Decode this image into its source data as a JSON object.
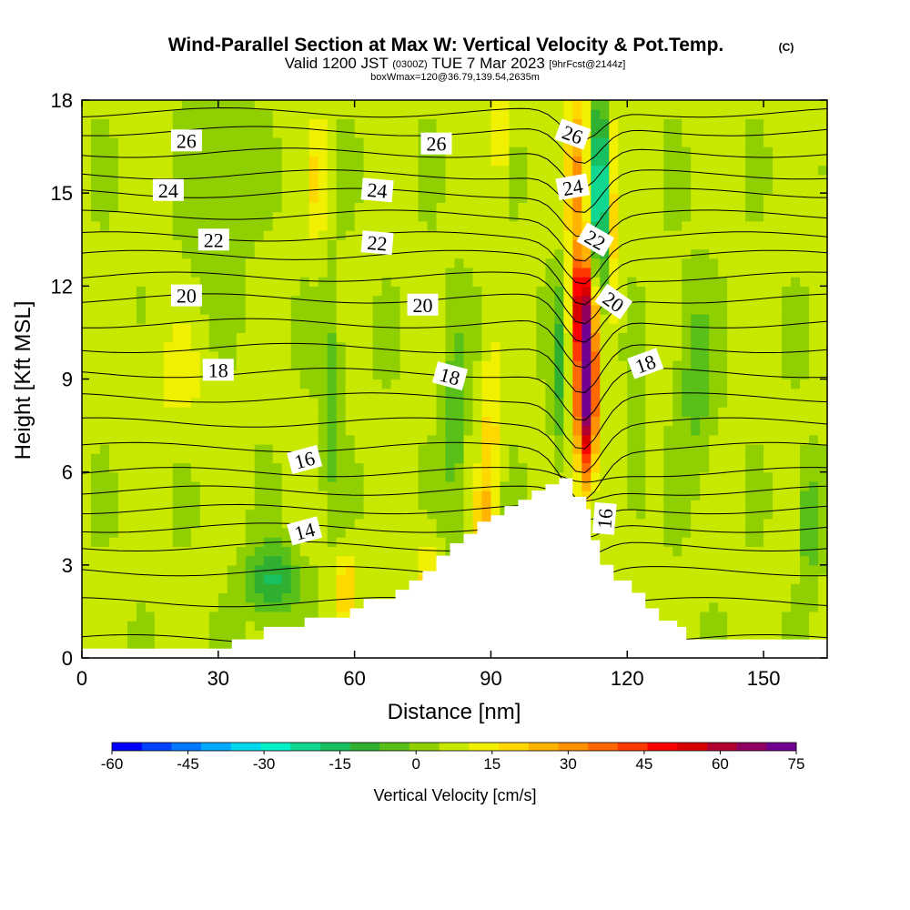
{
  "chart_data": {
    "type": "heatmap",
    "title": "Wind-Parallel Section at Max W: Vertical Velocity & Pot.Temp.",
    "title_mark": "(C)",
    "subtitle": {
      "valid": "Valid 1200 JST",
      "utc": "(0300Z)",
      "date": "TUE 7 Mar 2023",
      "forecast": "[9hrFcst@2144z]"
    },
    "subtitle2": "boxWmax=120@36.79,139.54,2635m",
    "xlabel": "Distance [nm]",
    "ylabel": "Height [Kft MSL]",
    "xlim": [
      0,
      164
    ],
    "ylim": [
      0,
      18
    ],
    "xticks": [
      0,
      30,
      60,
      90,
      120,
      150
    ],
    "yticks": [
      0,
      3,
      6,
      9,
      12,
      15,
      18
    ],
    "colorbar": {
      "label": "Vertical Velocity [cm/s]",
      "range": [
        -60,
        75
      ],
      "ticks": [
        -60,
        -45,
        -30,
        -15,
        0,
        15,
        30,
        45,
        60,
        75
      ],
      "colors": [
        "#0000ff",
        "#0040ff",
        "#0078ff",
        "#00aaff",
        "#00d8f0",
        "#00f0c8",
        "#10d890",
        "#18c060",
        "#30b030",
        "#58c018",
        "#90d000",
        "#c8e800",
        "#f0f000",
        "#ffd800",
        "#ffb400",
        "#ff9000",
        "#ff6800",
        "#ff3800",
        "#ff0000",
        "#d80000",
        "#b00030",
        "#900060",
        "#700090"
      ]
    },
    "terrain": [
      [
        0,
        0.3
      ],
      [
        30,
        0.3
      ],
      [
        33,
        0.6
      ],
      [
        40,
        1.0
      ],
      [
        49,
        1.0
      ],
      [
        49,
        1.3
      ],
      [
        55,
        1.3
      ],
      [
        59,
        1.6
      ],
      [
        62,
        1.9
      ],
      [
        68,
        1.9
      ],
      [
        69,
        2.2
      ],
      [
        72,
        2.5
      ],
      [
        75,
        2.8
      ],
      [
        78,
        3.3
      ],
      [
        81,
        3.7
      ],
      [
        84,
        4.0
      ],
      [
        87,
        4.4
      ],
      [
        90,
        4.6
      ],
      [
        93,
        4.9
      ],
      [
        96,
        5.1
      ],
      [
        99,
        5.4
      ],
      [
        102,
        5.6
      ],
      [
        105,
        5.8
      ],
      [
        108,
        5.8
      ],
      [
        108,
        5.2
      ],
      [
        111,
        5.2
      ],
      [
        111,
        4.8
      ],
      [
        112,
        3.8
      ],
      [
        114,
        3.0
      ],
      [
        117,
        2.5
      ],
      [
        121,
        2.1
      ],
      [
        124,
        1.6
      ],
      [
        127,
        1.2
      ],
      [
        131,
        1.0
      ],
      [
        133,
        0.6
      ],
      [
        162,
        0.6
      ],
      [
        164,
        0.3
      ]
    ],
    "velocity_features": [
      {
        "x": 111,
        "y": 8.5,
        "sx": 2.2,
        "sy": 2.6,
        "value": 70
      },
      {
        "x": 110,
        "y": 11.5,
        "sx": 2.5,
        "sy": 1.5,
        "value": 40
      },
      {
        "x": 109,
        "y": 15.5,
        "sx": 2.5,
        "sy": 3.0,
        "value": 25
      },
      {
        "x": 114,
        "y": 15.0,
        "sx": 1.6,
        "sy": 3.0,
        "value": -40
      },
      {
        "x": 117,
        "y": 14.0,
        "sx": 1.5,
        "sy": 3.5,
        "value": 12
      },
      {
        "x": 105,
        "y": 9.5,
        "sx": 1.8,
        "sy": 3.0,
        "value": -14
      },
      {
        "x": 42,
        "y": 2.5,
        "sx": 6.0,
        "sy": 1.2,
        "value": -20
      },
      {
        "x": 55,
        "y": 8.5,
        "sx": 2.2,
        "sy": 3.5,
        "value": -12
      },
      {
        "x": 82,
        "y": 7.5,
        "sx": 2.5,
        "sy": 3.5,
        "value": -12
      },
      {
        "x": 90,
        "y": 7.0,
        "sx": 2.0,
        "sy": 3.0,
        "value": 14
      },
      {
        "x": 58,
        "y": 2.3,
        "sx": 2.5,
        "sy": 1.2,
        "value": 16
      },
      {
        "x": 76,
        "y": 2.5,
        "sx": 2.0,
        "sy": 1.5,
        "value": 14
      },
      {
        "x": 88,
        "y": 4.5,
        "sx": 2.0,
        "sy": 1.2,
        "value": 15
      },
      {
        "x": 92,
        "y": 17.0,
        "sx": 2.0,
        "sy": 1.5,
        "value": 14
      },
      {
        "x": 52,
        "y": 15.5,
        "sx": 2.0,
        "sy": 2.0,
        "value": 12
      },
      {
        "x": 20,
        "y": 9.0,
        "sx": 12.0,
        "sy": 2.0,
        "value": 5
      },
      {
        "x": 135,
        "y": 9.0,
        "sx": 4.0,
        "sy": 3.0,
        "value": -11
      },
      {
        "x": 122,
        "y": 6.0,
        "sx": 2.0,
        "sy": 1.5,
        "value": -12
      },
      {
        "x": 160,
        "y": 4.5,
        "sx": 2.5,
        "sy": 2.0,
        "value": -14
      },
      {
        "x": 30,
        "y": 15.0,
        "sx": 6.0,
        "sy": 4.0,
        "value": -8
      }
    ],
    "isentropes": [
      {
        "y0": 0.6,
        "dips": [
          [
            110,
            0.3
          ]
        ]
      },
      {
        "y0": 1.8,
        "dips": [
          [
            110,
            0.4
          ]
        ]
      },
      {
        "y0": 2.8,
        "dips": [
          [
            110,
            0.5
          ]
        ]
      },
      {
        "y0": 3.6,
        "dips": [
          [
            110,
            0.5
          ]
        ]
      },
      {
        "y0": 4.2,
        "dips": [
          [
            110,
            0.5
          ]
        ]
      },
      {
        "y0": 4.8,
        "dips": [
          [
            110,
            0.5
          ]
        ]
      },
      {
        "y0": 5.4,
        "dips": [
          [
            110,
            0.4
          ]
        ]
      },
      {
        "y0": 6.0,
        "dips": [
          [
            110,
            0.3
          ]
        ]
      },
      {
        "y0": 6.8,
        "dips": [
          [
            110,
            1.6
          ]
        ]
      },
      {
        "y0": 7.6,
        "dips": [
          [
            110,
            1.5
          ]
        ]
      },
      {
        "y0": 8.4,
        "dips": [
          [
            110,
            1.6
          ]
        ]
      },
      {
        "y0": 9.2,
        "dips": [
          [
            110,
            1.6
          ]
        ]
      },
      {
        "y0": 10.0,
        "dips": [
          [
            110,
            1.6
          ]
        ]
      },
      {
        "y0": 10.8,
        "dips": [
          [
            110,
            1.6
          ]
        ]
      },
      {
        "y0": 11.6,
        "dips": [
          [
            110,
            1.5
          ]
        ]
      },
      {
        "y0": 12.3,
        "dips": [
          [
            110,
            1.5
          ]
        ]
      },
      {
        "y0": 13.0,
        "dips": [
          [
            110,
            1.5
          ]
        ]
      },
      {
        "y0": 13.6,
        "dips": [
          [
            110,
            1.4
          ]
        ]
      },
      {
        "y0": 14.3,
        "dips": [
          [
            110,
            1.4
          ]
        ]
      },
      {
        "y0": 15.0,
        "dips": [
          [
            110,
            1.4
          ]
        ]
      },
      {
        "y0": 15.6,
        "dips": [
          [
            110,
            1.3
          ]
        ]
      },
      {
        "y0": 16.3,
        "dips": [
          [
            110,
            1.3
          ]
        ]
      },
      {
        "y0": 17.0,
        "dips": [
          [
            110,
            1.2
          ]
        ]
      },
      {
        "y0": 17.6,
        "dips": [
          [
            110,
            1.0
          ]
        ]
      }
    ],
    "contour_labels": [
      {
        "text": "26",
        "x": 23,
        "y": 16.7,
        "rot": 0
      },
      {
        "text": "26",
        "x": 78,
        "y": 16.6,
        "rot": 0
      },
      {
        "text": "26",
        "x": 108,
        "y": 16.9,
        "rot": 20
      },
      {
        "text": "24",
        "x": 19,
        "y": 15.1,
        "rot": 0
      },
      {
        "text": "24",
        "x": 65,
        "y": 15.1,
        "rot": 5
      },
      {
        "text": "24",
        "x": 108,
        "y": 15.2,
        "rot": -10
      },
      {
        "text": "22",
        "x": 29,
        "y": 13.5,
        "rot": 0
      },
      {
        "text": "22",
        "x": 65,
        "y": 13.4,
        "rot": 5
      },
      {
        "text": "22",
        "x": 113,
        "y": 13.5,
        "rot": 30
      },
      {
        "text": "20",
        "x": 23,
        "y": 11.7,
        "rot": 0
      },
      {
        "text": "20",
        "x": 75,
        "y": 11.4,
        "rot": 0
      },
      {
        "text": "20",
        "x": 117,
        "y": 11.5,
        "rot": 35
      },
      {
        "text": "18",
        "x": 30,
        "y": 9.3,
        "rot": 0
      },
      {
        "text": "18",
        "x": 81,
        "y": 9.1,
        "rot": 15
      },
      {
        "text": "18",
        "x": 124,
        "y": 9.5,
        "rot": -20
      },
      {
        "text": "16",
        "x": 49,
        "y": 6.4,
        "rot": -15
      },
      {
        "text": "16",
        "x": 115,
        "y": 4.5,
        "rot": -85
      },
      {
        "text": "14",
        "x": 49,
        "y": 4.1,
        "rot": -15
      }
    ]
  }
}
